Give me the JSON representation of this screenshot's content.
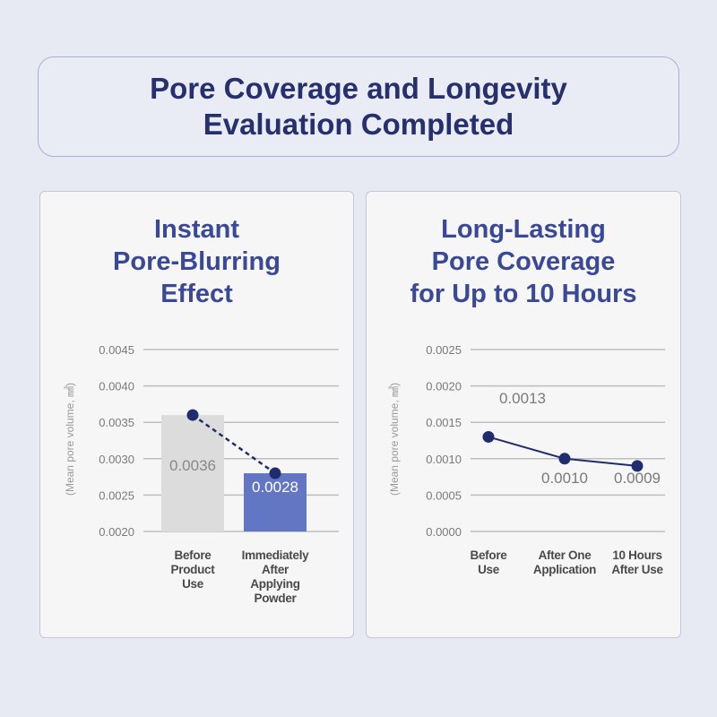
{
  "header": {
    "title": "Pore Coverage and Longevity\nEvaluation Completed"
  },
  "chart_data": [
    {
      "type": "bar",
      "title": "Instant\nPore-Blurring\nEffect",
      "y_label": "(Mean pore volume, ㎣)",
      "categories": [
        "Before\nProduct\nUse",
        "Immediately\nAfter\nApplying\nPowder"
      ],
      "values": [
        0.0036,
        0.0028
      ],
      "value_labels": [
        "0.0036",
        "0.0028"
      ],
      "colors": [
        "#dcdcdc",
        "#6376c4"
      ],
      "value_label_colors": [
        "#888888",
        "#ffffff"
      ],
      "overlay_line": true,
      "line_color": "#1f2d6e",
      "line_style": "dashed",
      "ylim": [
        0.002,
        0.0045
      ],
      "yticks": [
        {
          "value": 0.002,
          "label": "0.0020"
        },
        0.0025,
        {
          "value": 0.003,
          "label": "0.0030"
        },
        0.0035,
        {
          "value": 0.004,
          "label": "0.0040"
        },
        0.0045
      ],
      "grid": true
    },
    {
      "type": "line",
      "title": "Long-Lasting\nPore Coverage\nfor Up to 10 Hours",
      "y_label": "(Mean pore volume, ㎣)",
      "categories": [
        "Before\nUse",
        "After One\nApplication",
        "10 Hours\nAfter Use"
      ],
      "values": [
        0.0013,
        0.001,
        0.0009
      ],
      "value_labels": [
        "0.0013",
        "0.0010",
        "0.0009"
      ],
      "color": "#1f2d6e",
      "ylim": [
        0,
        0.0025
      ],
      "yticks": [
        {
          "value": 0,
          "label": "0.0000"
        },
        0.0005,
        {
          "value": 0.001,
          "label": "0.0010"
        },
        0.0015,
        {
          "value": 0.002,
          "label": "0.0020"
        },
        0.0025
      ],
      "grid": true
    }
  ]
}
